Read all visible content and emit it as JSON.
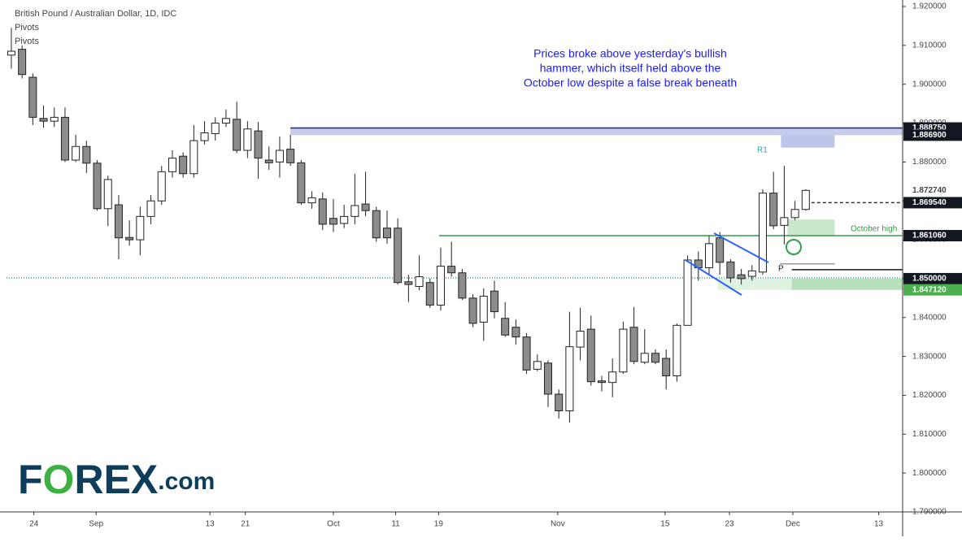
{
  "chart_data": {
    "type": "candlestick",
    "title": "British Pound / Australian Dollar, 1D, IDC",
    "indicators": [
      "Pivots",
      "Pivots"
    ],
    "annotation": [
      "Prices broke above yesterday's bullish",
      "hammer, which itself held above the",
      "October low despite a false break beneath"
    ],
    "level_labels": [
      "R1",
      "P",
      "October high"
    ],
    "logo": [
      "F",
      "O",
      "REX",
      ".com"
    ],
    "ylim": [
      1.79,
      1.92
    ],
    "yticks": [
      {
        "value": 1.92,
        "label": "1.920000"
      },
      {
        "value": 1.91,
        "label": "1.910000"
      },
      {
        "value": 1.9,
        "label": "1.900000"
      },
      {
        "value": 1.89,
        "label": "1.890000"
      },
      {
        "value": 1.88,
        "label": "1.880000"
      },
      {
        "value": 1.87,
        "label": "1.870000"
      },
      {
        "value": 1.86,
        "label": "1.860000"
      },
      {
        "value": 1.85,
        "label": "1.850000"
      },
      {
        "value": 1.84,
        "label": "1.840000"
      },
      {
        "value": 1.83,
        "label": "1.830000"
      },
      {
        "value": 1.82,
        "label": "1.820000"
      },
      {
        "value": 1.81,
        "label": "1.810000"
      },
      {
        "value": 1.8,
        "label": "1.800000"
      },
      {
        "value": 1.79,
        "label": "1.790000"
      }
    ],
    "xlim": [
      -0.45,
      83.03
    ],
    "xticks": [
      {
        "value": 2.1,
        "label": "24"
      },
      {
        "value": 7.9,
        "label": "Sep"
      },
      {
        "value": 18.5,
        "label": "13"
      },
      {
        "value": 21.8,
        "label": "21"
      },
      {
        "value": 30,
        "label": "Oct"
      },
      {
        "value": 35.8,
        "label": "11"
      },
      {
        "value": 39.8,
        "label": "19"
      },
      {
        "value": 50.9,
        "label": "Nov"
      },
      {
        "value": 60.9,
        "label": "15"
      },
      {
        "value": 66.9,
        "label": "23"
      },
      {
        "value": 72.8,
        "label": "Dec"
      },
      {
        "value": 80.8,
        "label": "13"
      }
    ],
    "price_tags": [
      {
        "value": 1.88875,
        "label": "1.888750",
        "color": "#131722"
      },
      {
        "value": 1.8869,
        "label": "1.886900",
        "color": "#131722"
      },
      {
        "value": 1.87274,
        "label": "1.872740",
        "color": "none"
      },
      {
        "value": 1.86954,
        "label": "1.869540",
        "color": "#131722"
      },
      {
        "value": 1.86106,
        "label": "1.861060",
        "color": "#131722"
      },
      {
        "value": 1.85,
        "label": "1.850000",
        "color": "#131722"
      },
      {
        "value": 1.84712,
        "label": "1.847120",
        "color": "#4caf50"
      }
    ],
    "zones": [
      {
        "low": 1.8869,
        "high": 1.88875,
        "x0": 26,
        "x1": 83.03,
        "color": "rgba(90,110,200,0.35)"
      },
      {
        "low": 1.8837,
        "high": 1.8869,
        "x0": 71.7,
        "x1": 76.7,
        "color": "rgba(90,110,200,0.4)"
      },
      {
        "low": 1.861,
        "high": 1.8652,
        "x0": 72.3,
        "x1": 76.7,
        "color": "rgba(76,175,80,0.3)"
      },
      {
        "low": 1.84712,
        "high": 1.85,
        "x0": 65.8,
        "x1": 72.7,
        "color": "rgba(76,175,80,0.18)"
      },
      {
        "low": 1.84712,
        "high": 1.85,
        "x0": 72.7,
        "x1": 83.03,
        "color": "rgba(76,175,80,0.4)"
      }
    ],
    "lines": [
      {
        "value": 1.88875,
        "x0": 26,
        "x1": 83.03,
        "color": "#1a237e",
        "dash": "none"
      },
      {
        "value": 1.86106,
        "x0": 39.85,
        "x1": 83.03,
        "color": "#2e9e46",
        "dash": "none"
      },
      {
        "value": 1.8523,
        "x0": 72.7,
        "x1": 83.03,
        "color": "#131722",
        "dash": "none"
      },
      {
        "value": 1.8538,
        "x0": 71.6,
        "x1": 76.7,
        "color": "#999",
        "dash": "none"
      },
      {
        "value": 1.8502,
        "x0": -0.45,
        "x1": 83.03,
        "color": "#26a69a",
        "dash": "1 2"
      },
      {
        "value": 1.86954,
        "x0": 74,
        "x1": 83.03,
        "color": "#333",
        "dash": "4 3"
      }
    ],
    "open": [
      1.9075,
      1.909,
      1.9018,
      1.8912,
      1.8905,
      1.8915,
      1.8805,
      1.884,
      1.8797,
      1.868,
      1.869,
      1.8606,
      1.86,
      1.866,
      1.87,
      1.8775,
      1.8815,
      1.877,
      1.8855,
      1.8873,
      1.89,
      1.891,
      1.883,
      1.888,
      1.8805,
      1.88,
      1.8833,
      1.8798,
      1.8695,
      1.8705,
      1.8655,
      1.8642,
      1.866,
      1.8692,
      1.8675,
      1.863,
      1.863,
      1.8492,
      1.848,
      1.849,
      1.8432,
      1.8532,
      1.8515,
      1.845,
      1.8388,
      1.8468,
      1.8398,
      1.8375,
      1.835,
      1.8267,
      1.8283,
      1.8203,
      1.816,
      1.8324,
      1.837,
      1.8237,
      1.8233,
      1.826,
      1.8375,
      1.8285,
      1.8308,
      1.8295,
      1.825,
      1.838,
      1.8548,
      1.8528,
      1.8605,
      1.8543,
      1.851,
      1.8506,
      1.8517,
      1.872,
      1.8637,
      1.8657,
      1.8678
    ],
    "high": [
      1.9145,
      1.91,
      1.9028,
      1.8945,
      1.894,
      1.894,
      1.887,
      1.8855,
      1.8805,
      1.8765,
      1.8715,
      1.865,
      1.8685,
      1.8715,
      1.879,
      1.883,
      1.8825,
      1.8895,
      1.8905,
      1.8915,
      1.8935,
      1.8955,
      1.8905,
      1.8903,
      1.884,
      1.8865,
      1.887,
      1.8805,
      1.8725,
      1.8722,
      1.8705,
      1.869,
      1.877,
      1.8775,
      1.8685,
      1.8675,
      1.8655,
      1.851,
      1.856,
      1.85,
      1.858,
      1.8595,
      1.8525,
      1.846,
      1.8475,
      1.8495,
      1.844,
      1.8395,
      1.836,
      1.8305,
      1.829,
      1.8215,
      1.8415,
      1.8425,
      1.8405,
      1.825,
      1.8295,
      1.839,
      1.8427,
      1.837,
      1.8318,
      1.8318,
      1.8385,
      1.856,
      1.857,
      1.861,
      1.862,
      1.855,
      1.8525,
      1.8535,
      1.873,
      1.8775,
      1.879,
      1.87,
      1.873
    ],
    "low": [
      1.904,
      1.9015,
      1.8895,
      1.8888,
      1.889,
      1.88,
      1.88,
      1.8772,
      1.8675,
      1.8635,
      1.855,
      1.8585,
      1.856,
      1.864,
      1.869,
      1.876,
      1.876,
      1.876,
      1.8845,
      1.8855,
      1.889,
      1.8823,
      1.881,
      1.8757,
      1.878,
      1.876,
      1.879,
      1.869,
      1.868,
      1.8625,
      1.862,
      1.863,
      1.864,
      1.866,
      1.8595,
      1.859,
      1.8485,
      1.844,
      1.847,
      1.8425,
      1.8418,
      1.8505,
      1.8445,
      1.8375,
      1.834,
      1.8398,
      1.835,
      1.833,
      1.8255,
      1.8262,
      1.817,
      1.814,
      1.813,
      1.829,
      1.8225,
      1.821,
      1.8195,
      1.8255,
      1.828,
      1.828,
      1.828,
      1.8215,
      1.8235,
      1.838,
      1.8495,
      1.851,
      1.851,
      1.849,
      1.8485,
      1.8495,
      1.851,
      1.8627,
      1.8588,
      1.865,
      1.8675
    ],
    "close": [
      1.9085,
      1.9025,
      1.8915,
      1.8905,
      1.8915,
      1.8805,
      1.884,
      1.8797,
      1.868,
      1.8755,
      1.8605,
      1.86,
      1.866,
      1.87,
      1.8775,
      1.881,
      1.877,
      1.8855,
      1.8875,
      1.89,
      1.8912,
      1.883,
      1.8885,
      1.881,
      1.8798,
      1.883,
      1.8798,
      1.8695,
      1.8708,
      1.864,
      1.864,
      1.866,
      1.8688,
      1.8675,
      1.8605,
      1.8605,
      1.849,
      1.8485,
      1.8505,
      1.8432,
      1.8532,
      1.8515,
      1.845,
      1.8385,
      1.8455,
      1.8415,
      1.8355,
      1.835,
      1.8265,
      1.8287,
      1.8203,
      1.816,
      1.8325,
      1.8365,
      1.8235,
      1.8233,
      1.826,
      1.837,
      1.8287,
      1.8308,
      1.8285,
      1.825,
      1.838,
      1.8548,
      1.8528,
      1.859,
      1.8542,
      1.8502,
      1.85,
      1.852,
      1.872,
      1.8636,
      1.8657,
      1.8678,
      1.8727
    ],
    "bull_color": "#ffffff",
    "bear_color": "#8c8c8c"
  }
}
